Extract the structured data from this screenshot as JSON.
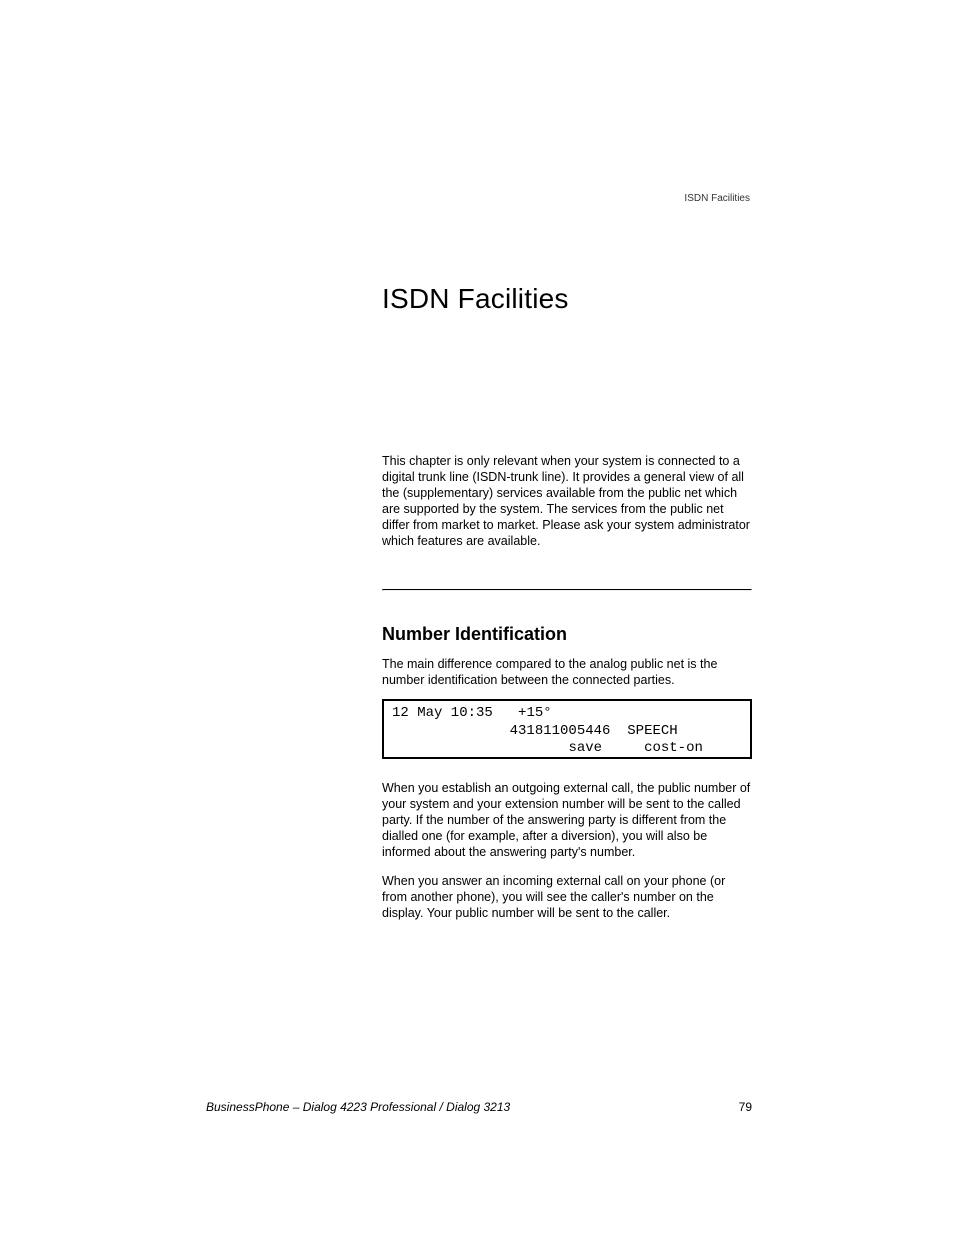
{
  "header": {
    "running_title": "ISDN Facilities"
  },
  "chapter": {
    "title": "ISDN Facilities",
    "intro": "This chapter is only relevant when your system is connected to a digital trunk line (ISDN-trunk line). It provides a general view of all the (supplementary) services available from the public net which are supported by the system. The services from the public net differ from market to market. Please ask your system administrator which features are available."
  },
  "section": {
    "heading": "Number Identification",
    "intro": "The main difference compared to the analog public net is the number identification between the connected parties.",
    "display": {
      "line1_datetime": "12 May 10:35",
      "line1_temp": "+15°",
      "line2_number": "431811005446",
      "line2_status": "SPEECH",
      "line3_left": "save",
      "line3_right": "cost-on"
    },
    "para2": "When you establish an outgoing external call, the public number of your system and your extension number will be sent to the called party. If the number of the answering party is different from the dialled one (for example, after a diversion), you will also be informed about the answering party's number.",
    "para3": "When you answer an incoming external call on your phone (or from another phone), you will see the caller's number on the display. Your public number will be sent to the caller."
  },
  "footer": {
    "product": "BusinessPhone – Dialog 4223 Professional / Dialog 3213",
    "page_number": "79"
  }
}
